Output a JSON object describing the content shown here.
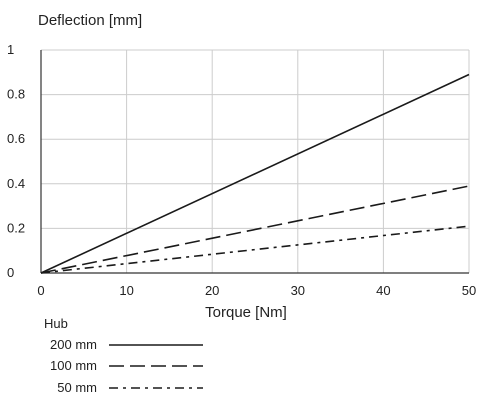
{
  "chart_data": {
    "type": "line",
    "title": "",
    "ylabel": "Deflection [mm]",
    "xlabel": "Torque [Nm]",
    "xlim": [
      0,
      50
    ],
    "ylim": [
      0,
      1
    ],
    "x_ticks": [
      0,
      10,
      20,
      30,
      40,
      50
    ],
    "x_tick_labels": [
      "0",
      "10",
      "20",
      "30",
      "40",
      "50"
    ],
    "y_ticks": [
      0,
      0.2,
      0.4,
      0.6,
      0.8,
      1
    ],
    "y_tick_labels": [
      "0",
      "0.2",
      "0.4",
      "0.6",
      "0.8",
      "1"
    ],
    "grid": true,
    "legend_title": "Hub",
    "legend_position": "bottom-left",
    "series": [
      {
        "name": "200 mm",
        "style": "solid",
        "color": "#1a1a1a",
        "x": [
          0,
          50
        ],
        "y": [
          0,
          0.89
        ]
      },
      {
        "name": "100 mm",
        "style": "dashed",
        "color": "#1a1a1a",
        "x": [
          0,
          50
        ],
        "y": [
          0,
          0.39
        ]
      },
      {
        "name": "50 mm",
        "style": "dash-dot",
        "color": "#1a1a1a",
        "x": [
          0,
          50
        ],
        "y": [
          0,
          0.21
        ]
      }
    ],
    "colors": {
      "axis": "#333333",
      "grid": "#cccccc",
      "line": "#1a1a1a"
    }
  }
}
